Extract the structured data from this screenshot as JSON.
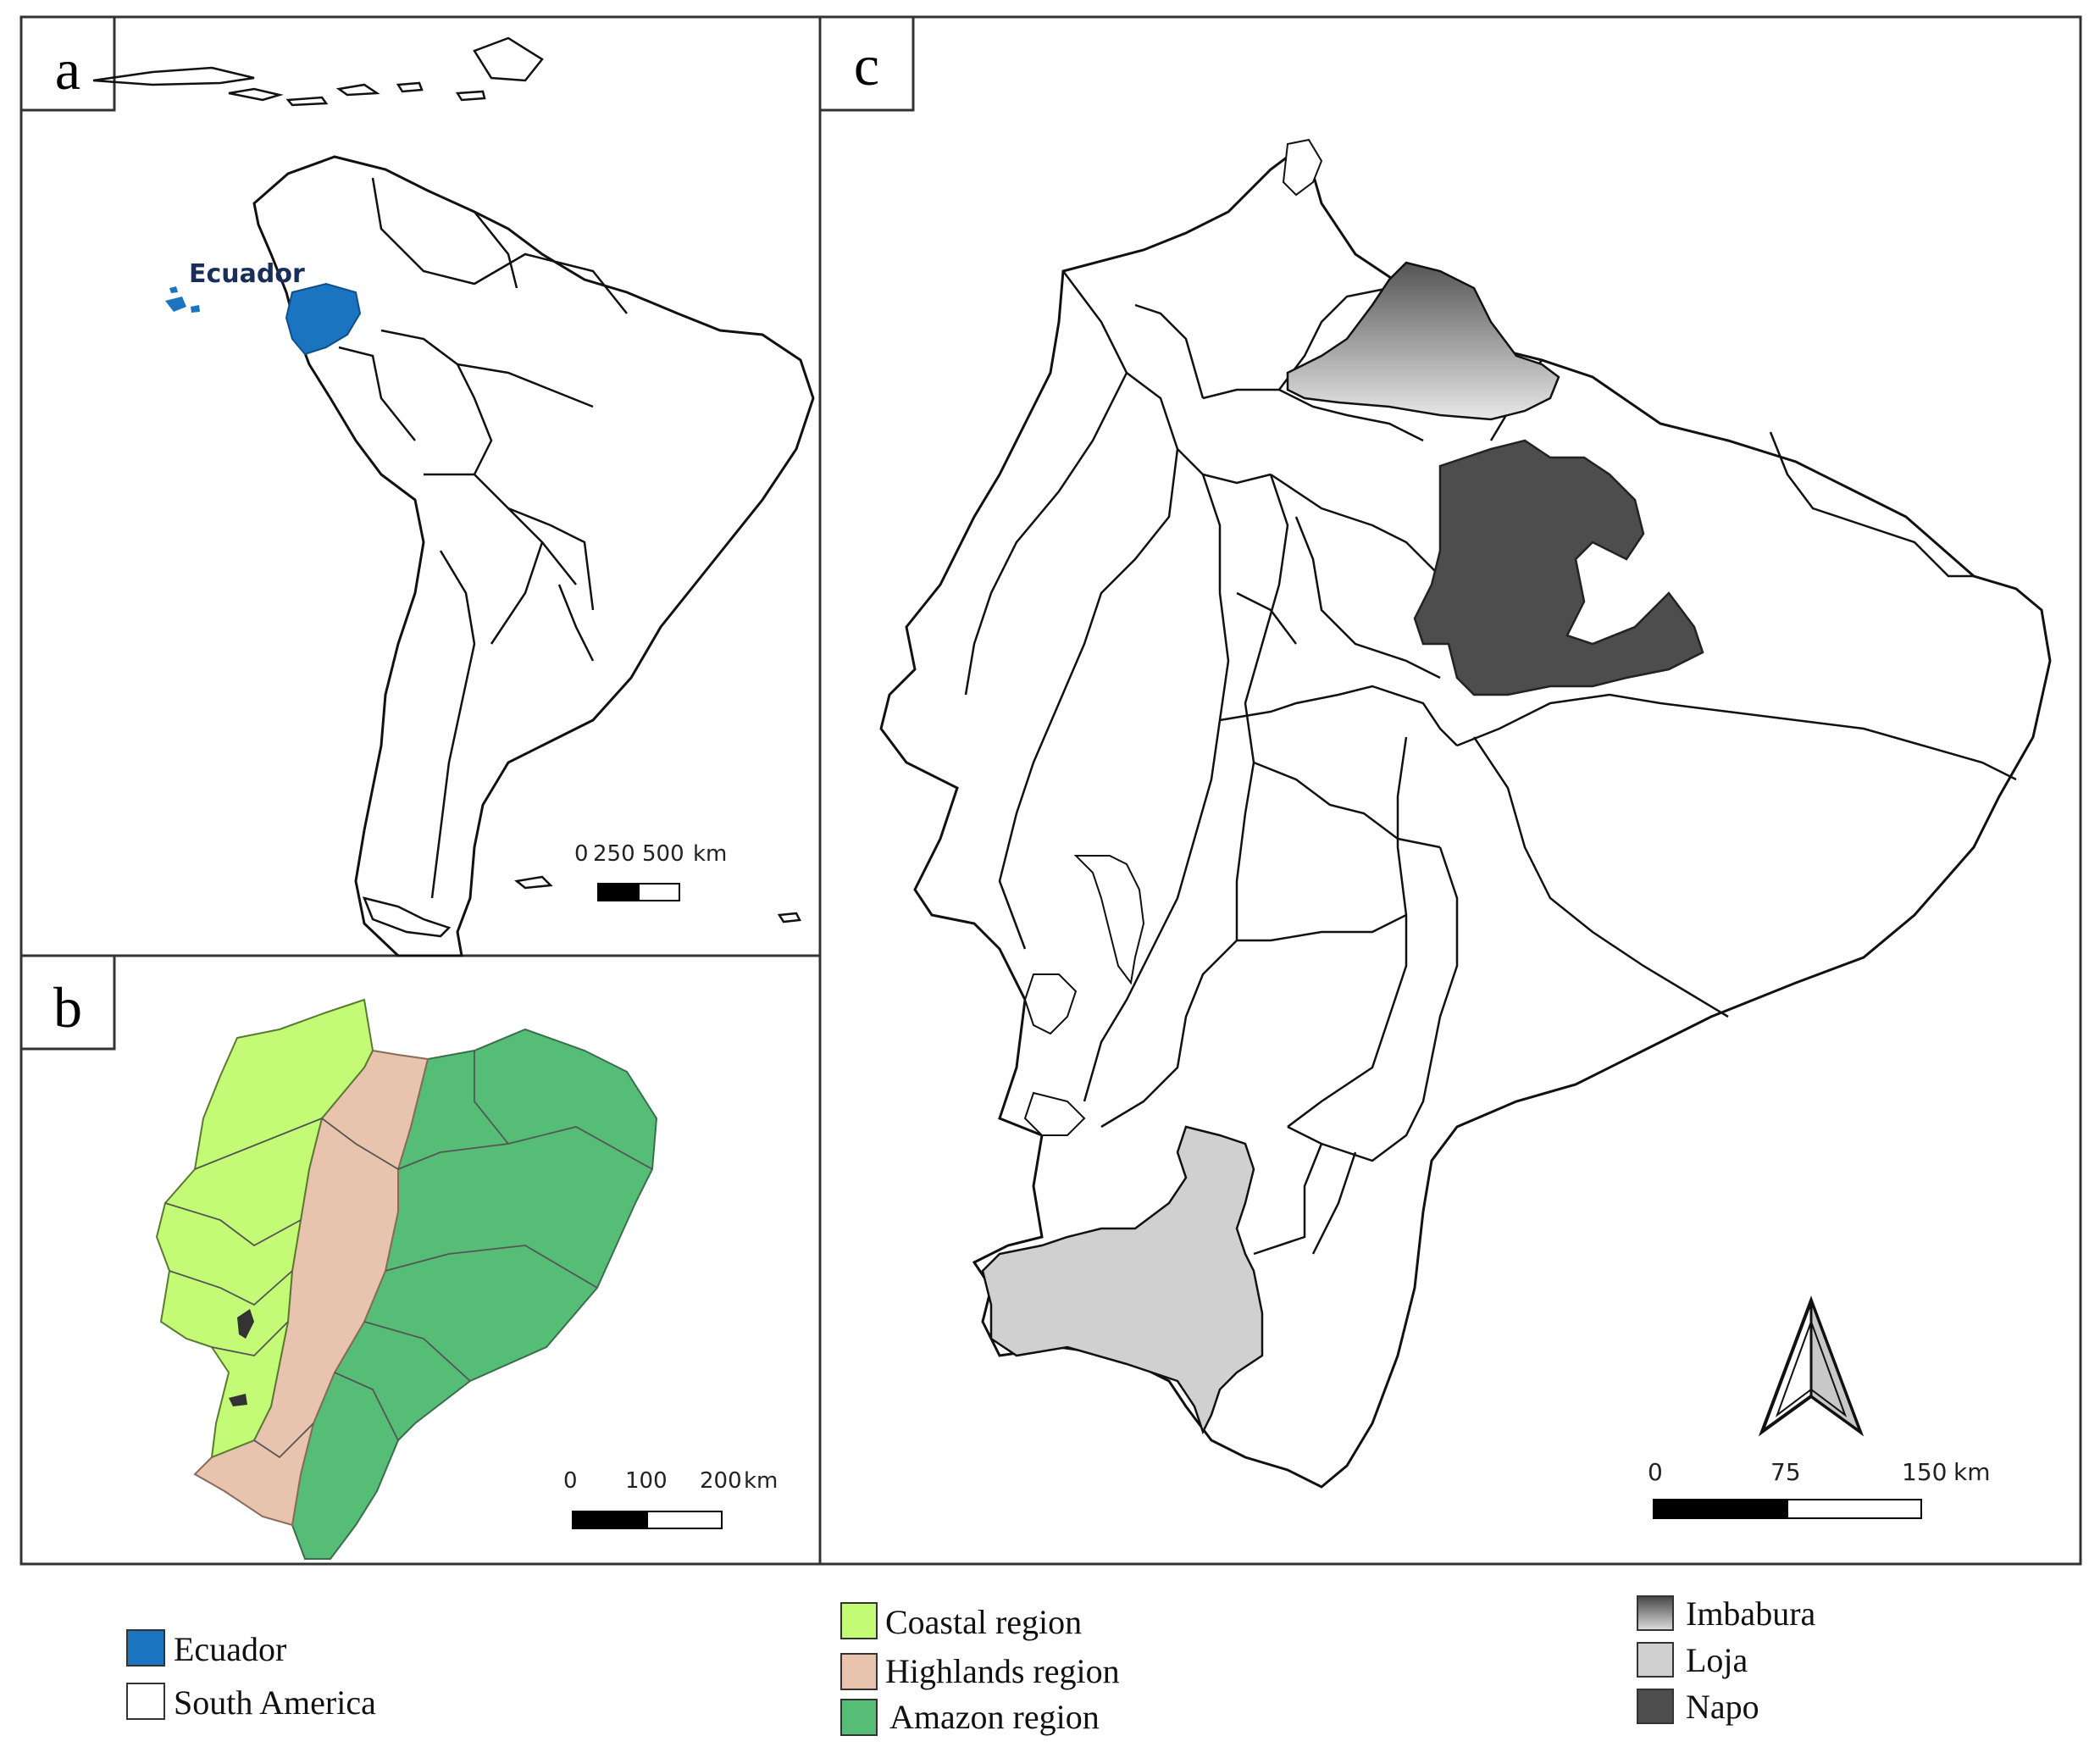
{
  "panels": {
    "a": {
      "label": "a",
      "country_label": "Ecuador",
      "scale": {
        "ticks": [
          "0",
          "250",
          "500"
        ],
        "unit": "km"
      }
    },
    "b": {
      "label": "b",
      "scale": {
        "ticks": [
          "0",
          "100",
          "200"
        ],
        "unit": "km"
      }
    },
    "c": {
      "label": "c",
      "scale": {
        "ticks": [
          "0",
          "75",
          "150"
        ],
        "unit": "km"
      }
    }
  },
  "legends": {
    "continent": [
      {
        "label": "Ecuador",
        "color": "#1b74c0"
      },
      {
        "label": "South America",
        "color": "#ffffff"
      }
    ],
    "regions": [
      {
        "label": "Coastal region",
        "color": "#c3fb77"
      },
      {
        "label": "Highlands region",
        "color": "#e8c4af"
      },
      {
        "label": "Amazon region",
        "color": "#55bd76"
      }
    ],
    "provinces": [
      {
        "label": "Imbabura",
        "color": "gradient-gray"
      },
      {
        "label": "Loja",
        "color": "#d0d0d0"
      },
      {
        "label": "Napo",
        "color": "#4d4d4d"
      }
    ]
  },
  "icons": {
    "north_arrow": "north-arrow-icon"
  }
}
